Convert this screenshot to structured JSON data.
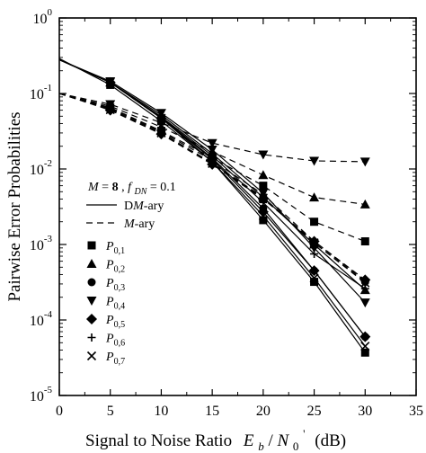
{
  "chart_data": {
    "type": "line",
    "xlabel": "Signal to Noise Ratio",
    "xlabel_symbol": {
      "E": "E",
      "b": "b",
      "slash": "/",
      "N": "N",
      "N_sub": "0",
      "N_sup": "'",
      "unit": "(dB)"
    },
    "ylabel": "Pairwise Error Probabilities",
    "xlim": [
      0,
      35
    ],
    "ylim_exp": [
      -5,
      0
    ],
    "yscale": "log",
    "x_ticks": [
      "0",
      "5",
      "10",
      "15",
      "20",
      "25",
      "30",
      "35"
    ],
    "y_ticks": [
      {
        "base": "10",
        "exp": "0"
      },
      {
        "base": "10",
        "exp": "-1"
      },
      {
        "base": "10",
        "exp": "-2"
      },
      {
        "base": "10",
        "exp": "-3"
      },
      {
        "base": "10",
        "exp": "-4"
      },
      {
        "base": "10",
        "exp": "-5"
      }
    ],
    "annotation": {
      "M": "M",
      "eq1": "=",
      "Mval": "8",
      "comma": ",",
      "f": "f",
      "f_sub": "DN",
      "eq2": "=",
      "fval": "0.1"
    },
    "legend_lines": [
      {
        "style": "solid",
        "prefix": "D",
        "M": "M",
        "suffix": "-ary"
      },
      {
        "style": "dashed",
        "prefix": "",
        "M": "M",
        "suffix": "-ary"
      }
    ],
    "legend_markers": [
      {
        "marker": "square",
        "P": "P",
        "sub": "0,1"
      },
      {
        "marker": "triangle-up",
        "P": "P",
        "sub": "0,2"
      },
      {
        "marker": "circle",
        "P": "P",
        "sub": "0,3"
      },
      {
        "marker": "triangle-down",
        "P": "P",
        "sub": "0,4"
      },
      {
        "marker": "diamond",
        "P": "P",
        "sub": "0,5"
      },
      {
        "marker": "plus",
        "P": "P",
        "sub": "0,6"
      },
      {
        "marker": "cross",
        "P": "P",
        "sub": "0,7"
      }
    ],
    "x": [
      0,
      5,
      10,
      15,
      20,
      25,
      30
    ],
    "series": [
      {
        "group": "DM-ary",
        "line": "solid",
        "marker": "square",
        "values": [
          0.29,
          0.13,
          0.043,
          0.0125,
          0.0021,
          0.00032,
          3.7e-05
        ]
      },
      {
        "group": "DM-ary",
        "line": "solid",
        "marker": "triangle-up",
        "values": [
          0.28,
          0.14,
          0.052,
          0.016,
          0.0042,
          0.001,
          0.00025
        ]
      },
      {
        "group": "DM-ary",
        "line": "solid",
        "marker": "circle",
        "values": [
          0.28,
          0.14,
          0.048,
          0.014,
          0.003,
          0.00045,
          6e-05
        ]
      },
      {
        "group": "DM-ary",
        "line": "solid",
        "marker": "triangle-down",
        "values": [
          0.28,
          0.145,
          0.055,
          0.018,
          0.0048,
          0.0009,
          0.00017
        ]
      },
      {
        "group": "DM-ary",
        "line": "solid",
        "marker": "diamond",
        "values": [
          0.28,
          0.14,
          0.047,
          0.0135,
          0.0027,
          0.00045,
          6e-05
        ]
      },
      {
        "group": "DM-ary",
        "line": "solid",
        "marker": "plus",
        "values": [
          0.28,
          0.14,
          0.049,
          0.015,
          0.0036,
          0.00075,
          0.00026
        ]
      },
      {
        "group": "DM-ary",
        "line": "solid",
        "marker": "cross",
        "values": [
          0.28,
          0.14,
          0.047,
          0.0125,
          0.0024,
          0.00036,
          4.5e-05
        ]
      },
      {
        "group": "M-ary",
        "line": "dashed",
        "marker": "square",
        "values": [
          0.1,
          0.065,
          0.032,
          0.014,
          0.006,
          0.002,
          0.0011
        ]
      },
      {
        "group": "M-ary",
        "line": "dashed",
        "marker": "triangle-up",
        "values": [
          0.1,
          0.068,
          0.036,
          0.017,
          0.0083,
          0.0042,
          0.0034
        ]
      },
      {
        "group": "M-ary",
        "line": "dashed",
        "marker": "circle",
        "values": [
          0.1,
          0.062,
          0.03,
          0.012,
          0.0042,
          0.00105,
          0.00032
        ]
      },
      {
        "group": "M-ary",
        "line": "dashed",
        "marker": "triangle-down",
        "values": [
          0.1,
          0.072,
          0.041,
          0.022,
          0.0155,
          0.0128,
          0.0125
        ]
      },
      {
        "group": "M-ary",
        "line": "dashed",
        "marker": "diamond",
        "values": [
          0.1,
          0.06,
          0.029,
          0.0115,
          0.004,
          0.0011,
          0.00034
        ]
      },
      {
        "group": "M-ary",
        "line": "dashed",
        "marker": "plus",
        "values": [
          0.1,
          0.064,
          0.031,
          0.013,
          0.0046,
          0.0011,
          0.00033
        ]
      },
      {
        "group": "M-ary",
        "line": "dashed",
        "marker": "cross",
        "values": [
          0.1,
          0.061,
          0.03,
          0.0118,
          0.0041,
          0.00105,
          0.00031
        ]
      }
    ]
  }
}
